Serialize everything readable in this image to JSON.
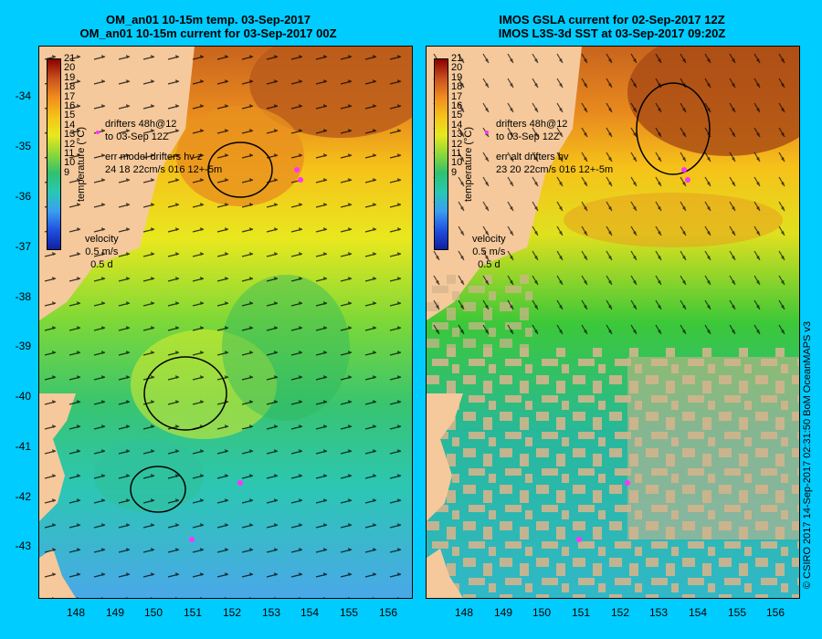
{
  "left_panel": {
    "title_line1": "OM_an01 10-15m temp. 03-Sep-2017",
    "title_line2": "OM_an01 10-15m current for 03-Sep-2017 00Z",
    "legend_drifters": "drifters 48h@12",
    "legend_drifters2": "to 03-Sep 12Z",
    "legend_err": "err model drifters hv z",
    "legend_err2": "24 18 22cm/s 016 12+-5m"
  },
  "right_panel": {
    "title_line1": "IMOS GSLA current for 02-Sep-2017 12Z",
    "title_line2": "IMOS L3S-3d SST at 03-Sep-2017 09:20Z",
    "legend_drifters": "drifters 48h@12",
    "legend_drifters2": "to 03-Sep 12Z",
    "legend_err": "err alt drifters hv",
    "legend_err2": "23 20 22cm/s 016 12+-5m"
  },
  "colorbar": {
    "label": "temperature (°C)",
    "ticks": [
      "21",
      "20",
      "19",
      "18",
      "17",
      "16",
      "15",
      "14",
      "13",
      "12",
      "11",
      "10",
      "9"
    ]
  },
  "velocity_legend": {
    "title": "velocity",
    "speed": "0.5 m/s",
    "duration": "0.5 d"
  },
  "y_axis": [
    "-34",
    "-35",
    "-36",
    "-37",
    "-38",
    "-39",
    "-40",
    "-41",
    "-42",
    "-43"
  ],
  "x_axis": [
    "148",
    "149",
    "150",
    "151",
    "152",
    "153",
    "154",
    "155",
    "156"
  ],
  "credit": "© CSIRO 2017   14-Sep-2017 02:31:50 BoM OceanMAPS v3",
  "colors": {
    "background": "#00ccff",
    "land": "#f5c99b",
    "drifters": "#ff33ff",
    "cloud_mask": "#d2b48c"
  }
}
